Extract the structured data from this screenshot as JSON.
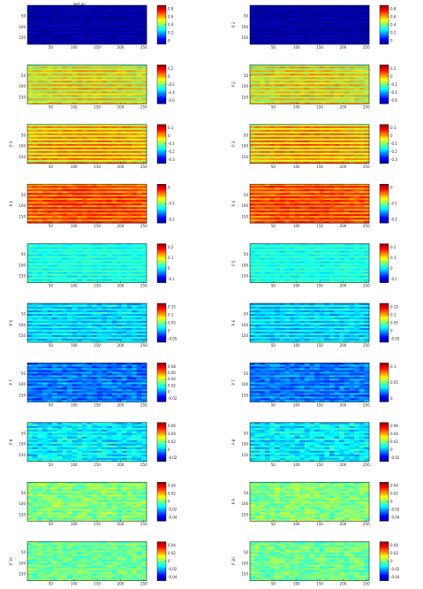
{
  "figure": {
    "title": "wet.an",
    "colormap": [
      "#00008f",
      "#0000ff",
      "#0080ff",
      "#00ffff",
      "#80ff80",
      "#ffff00",
      "#ff8000",
      "#ff0000",
      "#800000"
    ]
  },
  "chart_data": [
    {
      "type": "heatmap",
      "panel": "left",
      "row": 1,
      "ylabel": "",
      "title": "wet.an",
      "base": 0.0,
      "grad": 0.0,
      "noise": 0.03,
      "stripe": 0.06,
      "xticks": [
        "50",
        "100",
        "150",
        "200",
        "250"
      ],
      "yticks": [
        "50",
        "100",
        "150"
      ],
      "cbar_ticks": [
        "0.8",
        "0.6",
        "0.4",
        "0.2",
        "0"
      ]
    },
    {
      "type": "heatmap",
      "panel": "right",
      "row": 1,
      "ylabel": "P 2",
      "base": 0.0,
      "grad": 0.0,
      "noise": 0.03,
      "stripe": 0.06,
      "xticks": [
        "50",
        "100",
        "150",
        "200",
        "250"
      ],
      "yticks": [
        "50",
        "100",
        "150"
      ],
      "cbar_ticks": [
        "0.8",
        "0.6",
        "0.4",
        "0.2",
        "0"
      ]
    },
    {
      "type": "heatmap",
      "panel": "left",
      "row": 2,
      "ylabel": "",
      "base": 0.64,
      "grad": 0.05,
      "noise": 0.03,
      "stripe": 0.12,
      "xticks": [
        "50",
        "100",
        "150",
        "200",
        "250"
      ],
      "yticks": [
        "50",
        "100",
        "150"
      ],
      "cbar_ticks": [
        "0.2",
        "0",
        "-0.2",
        "-0.4",
        "-0.6"
      ]
    },
    {
      "type": "heatmap",
      "panel": "right",
      "row": 2,
      "ylabel": "P 2",
      "base": 0.64,
      "grad": 0.05,
      "noise": 0.03,
      "stripe": 0.12,
      "xticks": [
        "50",
        "100",
        "150",
        "200",
        "250"
      ],
      "yticks": [
        "50",
        "100",
        "150"
      ],
      "cbar_ticks": [
        "0.2",
        "0",
        "-0.2",
        "-0.4",
        "-0.6"
      ]
    },
    {
      "type": "heatmap",
      "panel": "left",
      "row": 3,
      "ylabel": "P 3",
      "base": 0.7,
      "grad": 0.05,
      "noise": 0.03,
      "stripe": 0.12,
      "xticks": [
        "50",
        "100",
        "150",
        "200",
        "250"
      ],
      "yticks": [
        "50",
        "100",
        "150"
      ],
      "cbar_ticks": [
        "0.1",
        "0",
        "-0.1",
        "-0.2",
        "-0.3"
      ]
    },
    {
      "type": "heatmap",
      "panel": "right",
      "row": 3,
      "ylabel": "P 3",
      "base": 0.7,
      "grad": 0.05,
      "noise": 0.03,
      "stripe": 0.12,
      "xticks": [
        "50",
        "100",
        "150",
        "200",
        "250"
      ],
      "yticks": [
        "50",
        "100",
        "150"
      ],
      "cbar_ticks": [
        "0.1",
        "0",
        "-0.1",
        "-0.2",
        "-0.3"
      ]
    },
    {
      "type": "heatmap",
      "panel": "left",
      "row": 4,
      "ylabel": "P 4",
      "base": 0.8,
      "grad": 0.03,
      "noise": 0.04,
      "stripe": 0.08,
      "xticks": [
        "50",
        "100",
        "150",
        "200",
        "250"
      ],
      "yticks": [
        "50",
        "100",
        "150"
      ],
      "cbar_ticks": [
        "0",
        "-0.1",
        "-0.2"
      ]
    },
    {
      "type": "heatmap",
      "panel": "right",
      "row": 4,
      "ylabel": "P 4",
      "base": 0.8,
      "grad": 0.03,
      "noise": 0.04,
      "stripe": 0.08,
      "xticks": [
        "50",
        "100",
        "150",
        "200",
        "250"
      ],
      "yticks": [
        "50",
        "100",
        "150"
      ],
      "cbar_ticks": [
        "0",
        "-0.1",
        "-0.2"
      ]
    },
    {
      "type": "heatmap",
      "panel": "left",
      "row": 5,
      "ylabel": "",
      "base": 0.4,
      "grad": 0.0,
      "noise": 0.03,
      "stripe": 0.05,
      "xticks": [
        "50",
        "100",
        "150",
        "200",
        "250"
      ],
      "yticks": [
        "50",
        "100",
        "150"
      ],
      "cbar_ticks": [
        "0.2",
        "0.1",
        "0",
        "-0.1"
      ]
    },
    {
      "type": "heatmap",
      "panel": "right",
      "row": 5,
      "ylabel": "P 5",
      "base": 0.4,
      "grad": 0.0,
      "noise": 0.03,
      "stripe": 0.05,
      "xticks": [
        "50",
        "100",
        "150",
        "200",
        "250"
      ],
      "yticks": [
        "50",
        "100",
        "150"
      ],
      "cbar_ticks": [
        "0.2",
        "0.1",
        "0",
        "-0.1"
      ]
    },
    {
      "type": "heatmap",
      "panel": "left",
      "row": 6,
      "ylabel": "P 6",
      "base": 0.34,
      "grad": 0.0,
      "noise": 0.05,
      "stripe": 0.06,
      "xticks": [
        "50",
        "100",
        "150",
        "200",
        "250"
      ],
      "yticks": [
        "50",
        "100",
        "150"
      ],
      "cbar_ticks": [
        "0.15",
        "0.1",
        "0.05",
        "0",
        "-0.05"
      ]
    },
    {
      "type": "heatmap",
      "panel": "right",
      "row": 6,
      "ylabel": "P 6",
      "base": 0.34,
      "grad": 0.0,
      "noise": 0.05,
      "stripe": 0.06,
      "xticks": [
        "50",
        "100",
        "150",
        "200",
        "250"
      ],
      "yticks": [
        "50",
        "100",
        "150"
      ],
      "cbar_ticks": [
        "0.15",
        "0.1",
        "0.05",
        "0",
        "-0.05"
      ]
    },
    {
      "type": "heatmap",
      "panel": "left",
      "row": 7,
      "ylabel": "P 7",
      "base": 0.24,
      "grad": 0.0,
      "noise": 0.06,
      "stripe": 0.05,
      "xticks": [
        "50",
        "100",
        "150",
        "200",
        "250"
      ],
      "yticks": [
        "50",
        "100",
        "150"
      ],
      "cbar_ticks": [
        "0.08",
        "0.06",
        "0.04",
        "0.02",
        "0",
        "-0.02"
      ]
    },
    {
      "type": "heatmap",
      "panel": "right",
      "row": 7,
      "ylabel": "P 7",
      "base": 0.24,
      "grad": 0.0,
      "noise": 0.06,
      "stripe": 0.05,
      "xticks": [
        "50",
        "100",
        "150",
        "200",
        "250"
      ],
      "yticks": [
        "50",
        "100",
        "150"
      ],
      "cbar_ticks": [
        "0.1",
        "0.05",
        "0"
      ]
    },
    {
      "type": "heatmap",
      "panel": "left",
      "row": 8,
      "ylabel": "P 8",
      "base": 0.36,
      "grad": 0.0,
      "noise": 0.07,
      "stripe": 0.04,
      "xticks": [
        "50",
        "100",
        "150",
        "200",
        "250"
      ],
      "yticks": [
        "50",
        "100",
        "150"
      ],
      "cbar_ticks": [
        "0.06",
        "0.04",
        "0.02",
        "0",
        "-0.02"
      ]
    },
    {
      "type": "heatmap",
      "panel": "right",
      "row": 8,
      "ylabel": "P 8",
      "base": 0.36,
      "grad": 0.0,
      "noise": 0.07,
      "stripe": 0.04,
      "xticks": [
        "50",
        "100",
        "150",
        "200",
        "250"
      ],
      "yticks": [
        "50",
        "100",
        "150"
      ],
      "cbar_ticks": [
        "0.06",
        "0.04",
        "0.02",
        "0",
        "-0.02"
      ]
    },
    {
      "type": "heatmap",
      "panel": "left",
      "row": 9,
      "ylabel": "",
      "base": 0.5,
      "grad": 0.0,
      "noise": 0.07,
      "stripe": 0.03,
      "xticks": [
        "50",
        "100",
        "150",
        "200",
        "250"
      ],
      "yticks": [
        "50",
        "100",
        "150"
      ],
      "cbar_ticks": [
        "0.04",
        "0.02",
        "0",
        "-0.02",
        "-0.04"
      ]
    },
    {
      "type": "heatmap",
      "panel": "right",
      "row": 9,
      "ylabel": "P 9",
      "base": 0.5,
      "grad": 0.0,
      "noise": 0.07,
      "stripe": 0.03,
      "xticks": [
        "50",
        "100",
        "150",
        "200",
        "250"
      ],
      "yticks": [
        "50",
        "100",
        "150"
      ],
      "cbar_ticks": [
        "0.04",
        "0.02",
        "0",
        "-0.02",
        "-0.04"
      ]
    },
    {
      "type": "heatmap",
      "panel": "left",
      "row": 10,
      "ylabel": "P 10",
      "base": 0.48,
      "grad": 0.0,
      "noise": 0.07,
      "stripe": 0.03,
      "xticks": [
        "50",
        "100",
        "150",
        "200",
        "250"
      ],
      "yticks": [
        "50",
        "100",
        "150"
      ],
      "cbar_ticks": [
        "0.04",
        "0.02",
        "0",
        "-0.02",
        "-0.04"
      ]
    },
    {
      "type": "heatmap",
      "panel": "right",
      "row": 10,
      "ylabel": "P 10",
      "base": 0.48,
      "grad": 0.0,
      "noise": 0.07,
      "stripe": 0.03,
      "xticks": [
        "50",
        "100",
        "150",
        "200",
        "250"
      ],
      "yticks": [
        "50",
        "100",
        "150"
      ],
      "cbar_ticks": [
        "0.04",
        "0.02",
        "0",
        "-0.02",
        "-0.04"
      ]
    }
  ]
}
